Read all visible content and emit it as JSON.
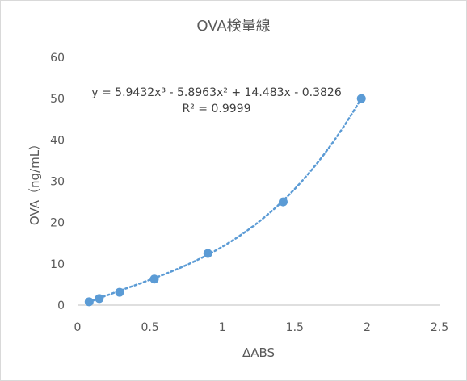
{
  "chart_data": {
    "type": "scatter",
    "title": "OVA検量線",
    "xlabel": "ΔABS",
    "ylabel": "OVA（ng/mL）",
    "xlim": [
      0,
      2.5
    ],
    "ylim": [
      0,
      60
    ],
    "xticks": [
      "0",
      "0.5",
      "1",
      "1.5",
      "2",
      "2.5"
    ],
    "yticks": [
      "0",
      "10",
      "20",
      "30",
      "40",
      "50",
      "60"
    ],
    "grid": false,
    "legend": "none",
    "series": [
      {
        "color": "#5b9bd5",
        "points": [
          {
            "x": 0.08,
            "y": 0.8
          },
          {
            "x": 0.15,
            "y": 1.6
          },
          {
            "x": 0.29,
            "y": 3.1
          },
          {
            "x": 0.53,
            "y": 6.3
          },
          {
            "x": 0.9,
            "y": 12.5
          },
          {
            "x": 1.42,
            "y": 25.0
          },
          {
            "x": 1.96,
            "y": 50.0
          }
        ]
      }
    ],
    "trendline": {
      "kind": "polynomial-order-3",
      "coefficients": [
        5.9432,
        -5.8963,
        14.483,
        -0.3826
      ],
      "equation": "y = 5.9432x³ - 5.8963x² + 14.483x - 0.3826",
      "r_squared": "R² = 0.9999",
      "style": "dotted",
      "color": "#5b9bd5"
    }
  }
}
